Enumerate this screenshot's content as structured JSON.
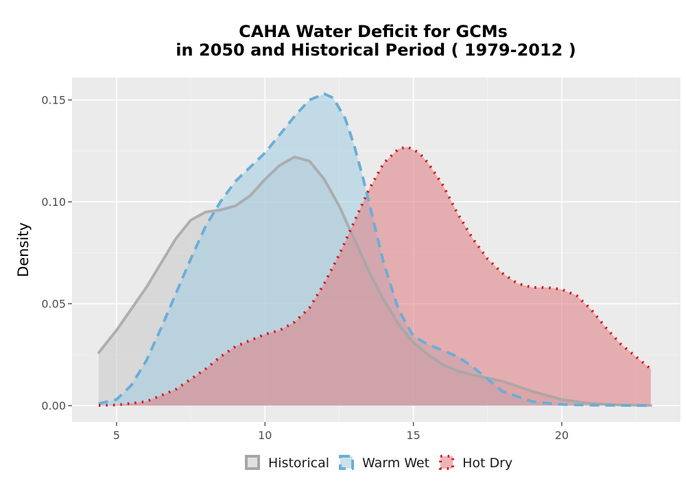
{
  "chart_data": {
    "type": "area",
    "title": "CAHA  Water Deficit for GCMs",
    "subtitle": "in 2050 and Historical Period ( 1979-2012 )",
    "xlabel": "",
    "ylabel": "Density",
    "xlim": [
      3.5,
      24
    ],
    "ylim": [
      -0.008,
      0.161
    ],
    "x_ticks": [
      5,
      10,
      15,
      20
    ],
    "y_ticks": [
      0.0,
      0.05,
      0.1,
      0.15
    ],
    "x_tick_labels": [
      "5",
      "10",
      "15",
      "20"
    ],
    "y_tick_labels": [
      "0.00",
      "0.05",
      "0.10",
      "0.15"
    ],
    "grid": true,
    "legend_position": "bottom",
    "series": [
      {
        "name": "Historical",
        "line_style": "solid",
        "line_color": "#a6a6a6",
        "fill_color": "#cccccc",
        "points": [
          [
            4.4,
            0.026
          ],
          [
            5,
            0.037
          ],
          [
            6,
            0.058
          ],
          [
            7,
            0.082
          ],
          [
            7.5,
            0.091
          ],
          [
            8,
            0.095
          ],
          [
            8.5,
            0.096
          ],
          [
            9,
            0.098
          ],
          [
            9.5,
            0.103
          ],
          [
            10,
            0.111
          ],
          [
            10.5,
            0.118
          ],
          [
            11,
            0.122
          ],
          [
            11.5,
            0.12
          ],
          [
            12,
            0.111
          ],
          [
            12.5,
            0.098
          ],
          [
            13,
            0.082
          ],
          [
            13.5,
            0.066
          ],
          [
            14,
            0.052
          ],
          [
            14.5,
            0.04
          ],
          [
            15,
            0.031
          ],
          [
            15.5,
            0.025
          ],
          [
            16,
            0.02
          ],
          [
            16.5,
            0.017
          ],
          [
            17,
            0.015
          ],
          [
            18,
            0.012
          ],
          [
            19,
            0.007
          ],
          [
            20,
            0.003
          ],
          [
            21,
            0.001
          ],
          [
            22,
            0.0003
          ],
          [
            23,
            0.0001
          ]
        ]
      },
      {
        "name": "Warm Wet",
        "line_style": "dashed",
        "line_color": "#6baed6",
        "fill_color": "#a6cee3",
        "points": [
          [
            4.4,
            0.001
          ],
          [
            5,
            0.003
          ],
          [
            5.5,
            0.01
          ],
          [
            6,
            0.022
          ],
          [
            6.5,
            0.038
          ],
          [
            7,
            0.055
          ],
          [
            7.5,
            0.072
          ],
          [
            8,
            0.088
          ],
          [
            8.5,
            0.1
          ],
          [
            9,
            0.11
          ],
          [
            9.5,
            0.117
          ],
          [
            10,
            0.124
          ],
          [
            10.5,
            0.133
          ],
          [
            11,
            0.142
          ],
          [
            11.5,
            0.15
          ],
          [
            12,
            0.153
          ],
          [
            12.3,
            0.151
          ],
          [
            12.7,
            0.141
          ],
          [
            13,
            0.128
          ],
          [
            13.3,
            0.112
          ],
          [
            13.6,
            0.094
          ],
          [
            14,
            0.07
          ],
          [
            14.5,
            0.047
          ],
          [
            15,
            0.034
          ],
          [
            15.5,
            0.03
          ],
          [
            16,
            0.027
          ],
          [
            16.5,
            0.024
          ],
          [
            17,
            0.019
          ],
          [
            17.5,
            0.013
          ],
          [
            18,
            0.007
          ],
          [
            19,
            0.002
          ],
          [
            20,
            0.0006
          ],
          [
            21,
            0.0002
          ],
          [
            23,
            0
          ]
        ]
      },
      {
        "name": "Hot Dry",
        "line_style": "dotted",
        "line_color": "#d7191c",
        "fill_color": "#e08488",
        "points": [
          [
            4.4,
            0.0001
          ],
          [
            5,
            0.0003
          ],
          [
            6,
            0.002
          ],
          [
            7,
            0.008
          ],
          [
            8,
            0.018
          ],
          [
            8.5,
            0.024
          ],
          [
            9,
            0.029
          ],
          [
            9.5,
            0.032
          ],
          [
            10,
            0.035
          ],
          [
            10.5,
            0.037
          ],
          [
            11,
            0.041
          ],
          [
            11.5,
            0.048
          ],
          [
            12,
            0.06
          ],
          [
            12.5,
            0.074
          ],
          [
            13,
            0.09
          ],
          [
            13.5,
            0.106
          ],
          [
            14,
            0.119
          ],
          [
            14.5,
            0.126
          ],
          [
            14.8,
            0.127
          ],
          [
            15.2,
            0.124
          ],
          [
            15.5,
            0.119
          ],
          [
            16,
            0.108
          ],
          [
            16.5,
            0.094
          ],
          [
            17,
            0.082
          ],
          [
            17.5,
            0.072
          ],
          [
            18,
            0.065
          ],
          [
            18.5,
            0.06
          ],
          [
            19,
            0.058
          ],
          [
            19.5,
            0.058
          ],
          [
            20,
            0.057
          ],
          [
            20.5,
            0.054
          ],
          [
            21,
            0.047
          ],
          [
            21.5,
            0.038
          ],
          [
            22,
            0.03
          ],
          [
            22.5,
            0.024
          ],
          [
            23,
            0.018
          ]
        ]
      }
    ]
  }
}
